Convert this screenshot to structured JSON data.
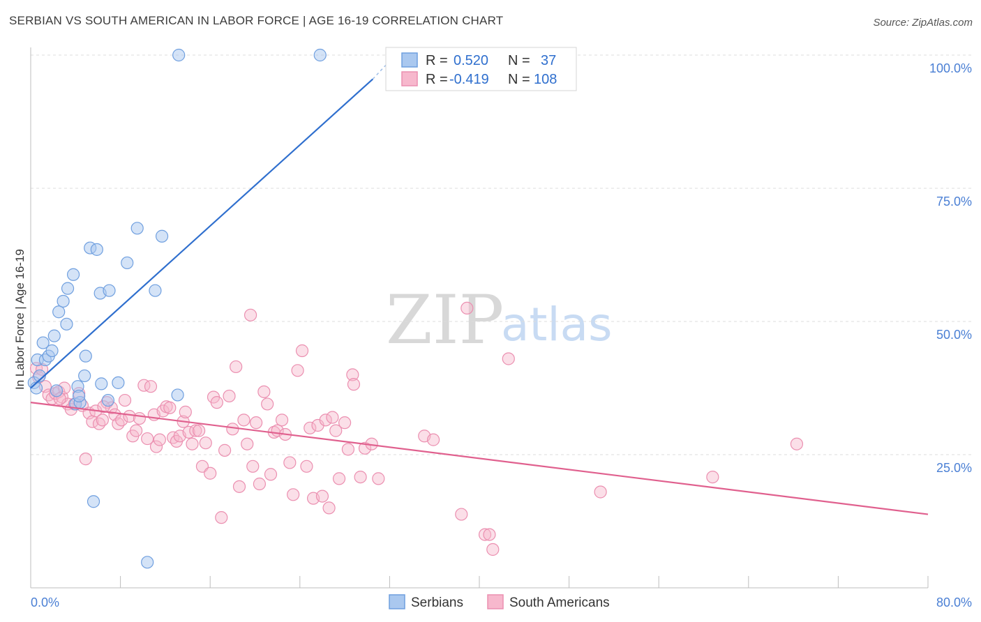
{
  "title": "SERBIAN VS SOUTH AMERICAN IN LABOR FORCE | AGE 16-19 CORRELATION CHART",
  "source": "Source: ZipAtlas.com",
  "watermark": {
    "zip": "ZIP",
    "atlas": "atlas"
  },
  "legend": {
    "serbians": {
      "r_label": "R = ",
      "r_value": "0.520",
      "n_label": "N = ",
      "n_value": "37"
    },
    "south_americans": {
      "r_label": "R = ",
      "r_value": "-0.419",
      "n_label": "N = ",
      "n_value": "108"
    }
  },
  "colors": {
    "serbian_fill": "#aac8ef",
    "serbian_stroke": "#6f9fdf",
    "serbian_line": "#2f6fce",
    "sa_fill": "#f7b8cd",
    "sa_stroke": "#eb8fb0",
    "sa_line": "#e0608e",
    "grid": "#dddddd",
    "axis_text": "#4a7fd4"
  },
  "chart_data": {
    "type": "scatter",
    "title": "SERBIAN VS SOUTH AMERICAN IN LABOR FORCE | AGE 16-19 CORRELATION CHART",
    "xlabel": "",
    "ylabel": "In Labor Force | Age 16-19",
    "xlim": [
      0,
      80
    ],
    "ylim": [
      0,
      102
    ],
    "x_tick_labels": [
      "0.0%",
      "80.0%"
    ],
    "y_ticks": [
      25,
      50,
      75,
      100
    ],
    "y_tick_labels": [
      "25.0%",
      "50.0%",
      "75.0%",
      "100.0%"
    ],
    "grid": true,
    "legend_position": "top-center",
    "series": [
      {
        "name": "Serbians",
        "R": 0.52,
        "N": 37,
        "trend": {
          "x": [
            0,
            30.5
          ],
          "y": [
            37.5,
            95.5
          ],
          "dashed_to": [
            32.5,
            100
          ]
        },
        "points": [
          [
            0.3,
            38.5
          ],
          [
            0.6,
            42.8
          ],
          [
            0.8,
            39.8
          ],
          [
            1.1,
            46
          ],
          [
            1.3,
            42.8
          ],
          [
            1.6,
            43.5
          ],
          [
            1.9,
            44.5
          ],
          [
            2.1,
            47.3
          ],
          [
            2.5,
            51.8
          ],
          [
            2.9,
            53.8
          ],
          [
            3.2,
            49.5
          ],
          [
            3.3,
            56.2
          ],
          [
            3.8,
            58.8
          ],
          [
            4.0,
            34.5
          ],
          [
            4.4,
            34.8
          ],
          [
            4.2,
            37.8
          ],
          [
            4.3,
            36.0
          ],
          [
            4.9,
            43.5
          ],
          [
            4.8,
            39.8
          ],
          [
            5.3,
            63.8
          ],
          [
            5.9,
            63.5
          ],
          [
            6.2,
            55.3
          ],
          [
            6.3,
            38.3
          ],
          [
            7.0,
            55.8
          ],
          [
            7.8,
            38.5
          ],
          [
            8.6,
            61.0
          ],
          [
            9.5,
            67.5
          ],
          [
            11.1,
            55.8
          ],
          [
            11.7,
            66.0
          ],
          [
            13.2,
            100
          ],
          [
            13.1,
            36.2
          ],
          [
            25.8,
            100
          ],
          [
            5.6,
            16.2
          ],
          [
            10.4,
            4.8
          ],
          [
            2.3,
            37.0
          ],
          [
            0.5,
            37.5
          ],
          [
            6.9,
            35.2
          ]
        ]
      },
      {
        "name": "South Americans",
        "R": -0.419,
        "N": 108,
        "trend": {
          "x": [
            0,
            80
          ],
          "y": [
            34.8,
            13.8
          ]
        },
        "points": [
          [
            0.5,
            41.2
          ],
          [
            0.7,
            39.5
          ],
          [
            1.0,
            41.0
          ],
          [
            1.3,
            37.8
          ],
          [
            1.6,
            36.2
          ],
          [
            1.9,
            35.5
          ],
          [
            2.2,
            36.5
          ],
          [
            2.5,
            36.8
          ],
          [
            2.8,
            35.8
          ],
          [
            3.0,
            37.5
          ],
          [
            3.3,
            34.5
          ],
          [
            3.6,
            33.5
          ],
          [
            3.9,
            34.5
          ],
          [
            4.3,
            36.5
          ],
          [
            4.6,
            34.2
          ],
          [
            4.9,
            24.2
          ],
          [
            5.2,
            32.8
          ],
          [
            5.5,
            31.2
          ],
          [
            5.8,
            33.2
          ],
          [
            6.1,
            30.8
          ],
          [
            6.4,
            31.5
          ],
          [
            6.8,
            34.8
          ],
          [
            7.2,
            33.8
          ],
          [
            7.5,
            32.5
          ],
          [
            7.8,
            30.8
          ],
          [
            8.1,
            31.5
          ],
          [
            8.4,
            35.2
          ],
          [
            8.8,
            32.2
          ],
          [
            9.1,
            28.5
          ],
          [
            9.4,
            29.5
          ],
          [
            9.7,
            31.8
          ],
          [
            10.1,
            38.0
          ],
          [
            10.4,
            28.0
          ],
          [
            10.7,
            37.8
          ],
          [
            11.0,
            32.5
          ],
          [
            11.2,
            26.5
          ],
          [
            11.5,
            27.8
          ],
          [
            11.8,
            33.2
          ],
          [
            12.1,
            34.0
          ],
          [
            12.4,
            33.8
          ],
          [
            12.7,
            28.2
          ],
          [
            13.0,
            27.5
          ],
          [
            13.3,
            28.5
          ],
          [
            13.6,
            31.2
          ],
          [
            13.8,
            33.0
          ],
          [
            14.1,
            29.2
          ],
          [
            14.4,
            27.0
          ],
          [
            14.7,
            29.5
          ],
          [
            15.0,
            29.5
          ],
          [
            15.3,
            22.8
          ],
          [
            15.6,
            27.2
          ],
          [
            16.0,
            21.5
          ],
          [
            16.3,
            35.8
          ],
          [
            16.6,
            34.8
          ],
          [
            17.0,
            13.2
          ],
          [
            17.3,
            25.8
          ],
          [
            17.7,
            36.0
          ],
          [
            18.0,
            29.8
          ],
          [
            18.3,
            41.5
          ],
          [
            18.6,
            19.0
          ],
          [
            19.0,
            31.5
          ],
          [
            19.3,
            27.0
          ],
          [
            19.6,
            51.2
          ],
          [
            19.8,
            22.8
          ],
          [
            20.1,
            31.0
          ],
          [
            20.4,
            19.5
          ],
          [
            20.8,
            36.8
          ],
          [
            21.1,
            34.5
          ],
          [
            21.4,
            21.3
          ],
          [
            21.7,
            29.2
          ],
          [
            22.0,
            29.5
          ],
          [
            22.4,
            31.5
          ],
          [
            22.7,
            28.8
          ],
          [
            23.1,
            23.5
          ],
          [
            23.4,
            17.5
          ],
          [
            23.8,
            40.8
          ],
          [
            24.2,
            44.5
          ],
          [
            24.6,
            22.8
          ],
          [
            24.9,
            30.0
          ],
          [
            25.2,
            16.8
          ],
          [
            25.6,
            30.5
          ],
          [
            26.0,
            17.2
          ],
          [
            26.3,
            31.5
          ],
          [
            26.6,
            15.0
          ],
          [
            26.9,
            32.0
          ],
          [
            27.2,
            29.5
          ],
          [
            27.5,
            20.5
          ],
          [
            28.0,
            31.0
          ],
          [
            28.3,
            26.0
          ],
          [
            28.7,
            40.0
          ],
          [
            28.8,
            38.2
          ],
          [
            29.4,
            20.8
          ],
          [
            29.8,
            26.2
          ],
          [
            30.4,
            27.0
          ],
          [
            31.0,
            20.5
          ],
          [
            35.1,
            28.5
          ],
          [
            35.9,
            27.8
          ],
          [
            38.4,
            13.8
          ],
          [
            38.9,
            52.5
          ],
          [
            40.5,
            10.0
          ],
          [
            40.9,
            10.0
          ],
          [
            41.2,
            7.2
          ],
          [
            42.6,
            43.0
          ],
          [
            50.8,
            18.0
          ],
          [
            60.8,
            20.8
          ],
          [
            68.3,
            27.0
          ],
          [
            2.6,
            35.5
          ],
          [
            6.5,
            34.0
          ]
        ]
      }
    ]
  }
}
